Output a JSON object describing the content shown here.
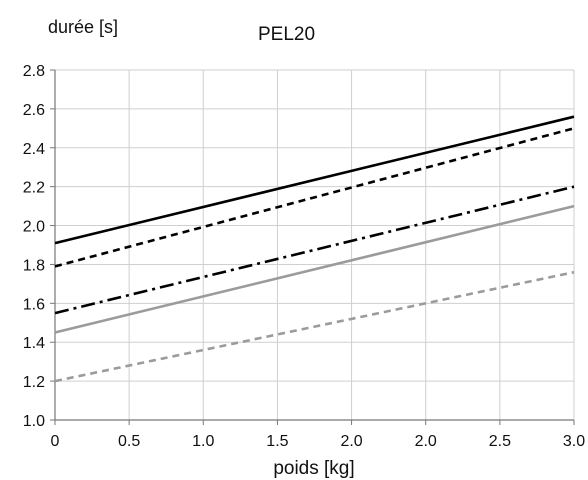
{
  "chart_data": {
    "type": "line",
    "title": "PEL20",
    "ylabel": "durée [s]",
    "xlabel": "poids [kg]",
    "x_tick_labels": [
      "0",
      "0.5",
      "1.0",
      "1.5",
      "2.0",
      "2.0",
      "2.5",
      "3.0"
    ],
    "y_ticks": [
      "1.0",
      "1.2",
      "1.4",
      "1.6",
      "1.8",
      "2.0",
      "2.2",
      "2.4",
      "2.6",
      "2.8"
    ],
    "xlim": [
      0,
      3.0
    ],
    "ylim": [
      1.0,
      2.8
    ],
    "grid": true,
    "series": [
      {
        "x": [
          0,
          3.0
        ],
        "y": [
          1.91,
          2.56
        ],
        "color": "#000000",
        "dash": "solid"
      },
      {
        "x": [
          0,
          3.0
        ],
        "y": [
          1.79,
          2.5
        ],
        "color": "#000000",
        "dash": "dashed"
      },
      {
        "x": [
          0,
          3.0
        ],
        "y": [
          1.55,
          2.2
        ],
        "color": "#000000",
        "dash": "dashdot"
      },
      {
        "x": [
          0,
          3.0
        ],
        "y": [
          1.45,
          2.1
        ],
        "color": "#9b9b9b",
        "dash": "solid"
      },
      {
        "x": [
          0,
          3.0
        ],
        "y": [
          1.2,
          1.76
        ],
        "color": "#9b9b9b",
        "dash": "dashed"
      }
    ]
  }
}
